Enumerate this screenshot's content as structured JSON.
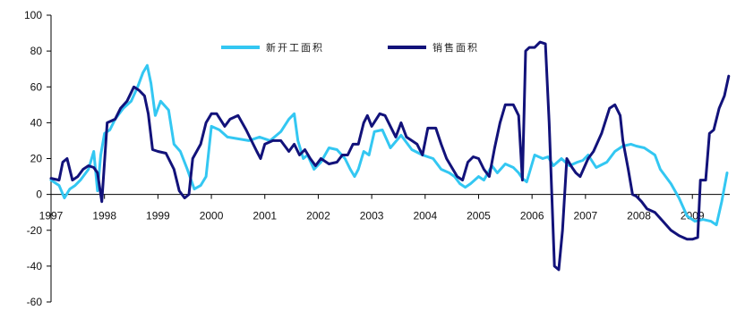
{
  "chart_data": {
    "type": "line",
    "title": "",
    "xlabel": "",
    "ylabel": "",
    "xlim": [
      1997.0,
      2009.7
    ],
    "ylim": [
      -60,
      100
    ],
    "y_ticks": [
      "100",
      "80",
      "60",
      "40",
      "20",
      "0",
      "-20",
      "-40",
      "-60"
    ],
    "x_ticks": [
      "1997",
      "1998",
      "1999",
      "2000",
      "2001",
      "2002",
      "2003",
      "2004",
      "2005",
      "2006",
      "2007",
      "2008",
      "2009"
    ],
    "grid": false,
    "legend_position": "top-center",
    "series": [
      {
        "name": "新开工面积",
        "color": "#33C7F2",
        "x": [
          1997.0,
          1997.15,
          1997.25,
          1997.35,
          1997.45,
          1997.55,
          1997.7,
          1997.8,
          1997.87,
          1997.93,
          1998.0,
          1998.1,
          1998.2,
          1998.35,
          1998.5,
          1998.62,
          1998.72,
          1998.8,
          1998.87,
          1998.95,
          1999.05,
          1999.2,
          1999.3,
          1999.42,
          1999.55,
          1999.68,
          1999.8,
          1999.9,
          2000.0,
          2000.15,
          2000.3,
          2000.5,
          2000.7,
          2000.9,
          2001.1,
          2001.3,
          2001.45,
          2001.55,
          2001.62,
          2001.72,
          2001.8,
          2001.92,
          2002.05,
          2002.2,
          2002.35,
          2002.5,
          2002.6,
          2002.68,
          2002.75,
          2002.85,
          2002.95,
          2003.05,
          2003.2,
          2003.35,
          2003.55,
          2003.75,
          2003.95,
          2004.15,
          2004.3,
          2004.45,
          2004.55,
          2004.65,
          2004.75,
          2004.85,
          2005.0,
          2005.1,
          2005.25,
          2005.35,
          2005.5,
          2005.65,
          2005.75,
          2005.82,
          2005.9,
          2005.95,
          2006.05,
          2006.2,
          2006.3,
          2006.4,
          2006.55,
          2006.7,
          2006.85,
          2006.95,
          2007.05,
          2007.2,
          2007.4,
          2007.55,
          2007.7,
          2007.85,
          2007.95,
          2008.1,
          2008.2,
          2008.3,
          2008.4,
          2008.6,
          2008.75,
          2008.9,
          2009.05,
          2009.2,
          2009.35,
          2009.45,
          2009.55,
          2009.65
        ],
        "y": [
          8,
          5,
          -2,
          3,
          5,
          8,
          14,
          24,
          2,
          22,
          34,
          36,
          42,
          48,
          52,
          60,
          68,
          72,
          62,
          44,
          52,
          47,
          28,
          24,
          14,
          3,
          5,
          10,
          38,
          36,
          32,
          31,
          30,
          32,
          30,
          35,
          42,
          45,
          30,
          20,
          22,
          14,
          18,
          26,
          25,
          20,
          14,
          10,
          14,
          24,
          22,
          35,
          36,
          26,
          33,
          25,
          22,
          20,
          14,
          12,
          10,
          6,
          4,
          6,
          10,
          8,
          16,
          12,
          17,
          15,
          12,
          9,
          7,
          12,
          22,
          20,
          21,
          16,
          20,
          16,
          18,
          19,
          22,
          15,
          18,
          24,
          27,
          28,
          27,
          26,
          24,
          22,
          14,
          6,
          -2,
          -12,
          -15,
          -14,
          -15,
          -17,
          -4,
          12
        ]
      },
      {
        "name": "销售面积",
        "color": "#12127A",
        "x": [
          1997.0,
          1997.15,
          1997.22,
          1997.3,
          1997.4,
          1997.5,
          1997.6,
          1997.7,
          1997.8,
          1997.87,
          1997.95,
          1998.05,
          1998.2,
          1998.3,
          1998.42,
          1998.55,
          1998.65,
          1998.75,
          1998.82,
          1998.9,
          1999.0,
          1999.15,
          1999.3,
          1999.4,
          1999.5,
          1999.58,
          1999.65,
          1999.8,
          1999.9,
          2000.0,
          2000.1,
          2000.25,
          2000.35,
          2000.5,
          2000.65,
          2000.75,
          2000.85,
          2000.92,
          2001.0,
          2001.15,
          2001.3,
          2001.45,
          2001.55,
          2001.65,
          2001.75,
          2001.85,
          2001.95,
          2002.05,
          2002.2,
          2002.35,
          2002.45,
          2002.55,
          2002.65,
          2002.75,
          2002.85,
          2002.92,
          2003.0,
          2003.15,
          2003.25,
          2003.35,
          2003.45,
          2003.55,
          2003.65,
          2003.75,
          2003.85,
          2003.95,
          2004.05,
          2004.2,
          2004.3,
          2004.4,
          2004.5,
          2004.6,
          2004.7,
          2004.8,
          2004.9,
          2005.0,
          2005.1,
          2005.2,
          2005.3,
          2005.4,
          2005.5,
          2005.65,
          2005.75,
          2005.82,
          2005.88,
          2005.95,
          2006.05,
          2006.15,
          2006.25,
          2006.32,
          2006.42,
          2006.5,
          2006.57,
          2006.65,
          2006.75,
          2006.82,
          2006.9,
          2007.05,
          2007.15,
          2007.3,
          2007.45,
          2007.55,
          2007.65,
          2007.7,
          2007.8,
          2007.88,
          2007.95,
          2008.05,
          2008.15,
          2008.3,
          2008.45,
          2008.6,
          2008.75,
          2008.9,
          2009.0,
          2009.1,
          2009.15,
          2009.25,
          2009.32,
          2009.4,
          2009.5,
          2009.6,
          2009.68
        ],
        "y": [
          9,
          8,
          18,
          20,
          8,
          10,
          14,
          16,
          15,
          12,
          -4,
          40,
          42,
          48,
          52,
          60,
          58,
          55,
          45,
          25,
          24,
          23,
          14,
          2,
          -2,
          0,
          20,
          28,
          40,
          45,
          45,
          38,
          42,
          44,
          36,
          30,
          24,
          20,
          28,
          30,
          30,
          24,
          28,
          22,
          25,
          20,
          16,
          20,
          17,
          18,
          22,
          22,
          28,
          28,
          40,
          44,
          38,
          45,
          44,
          38,
          32,
          40,
          32,
          30,
          28,
          22,
          37,
          37,
          28,
          20,
          15,
          10,
          8,
          18,
          21,
          20,
          14,
          10,
          26,
          40,
          50,
          50,
          44,
          8,
          80,
          82,
          82,
          85,
          84,
          40,
          -40,
          -42,
          -20,
          20,
          15,
          12,
          10,
          20,
          24,
          34,
          48,
          50,
          44,
          30,
          14,
          0,
          -1,
          -4,
          -8,
          -10,
          -15,
          -20,
          -23,
          -25,
          -25,
          -24,
          8,
          8,
          34,
          36,
          48,
          55,
          66
        ]
      }
    ]
  }
}
